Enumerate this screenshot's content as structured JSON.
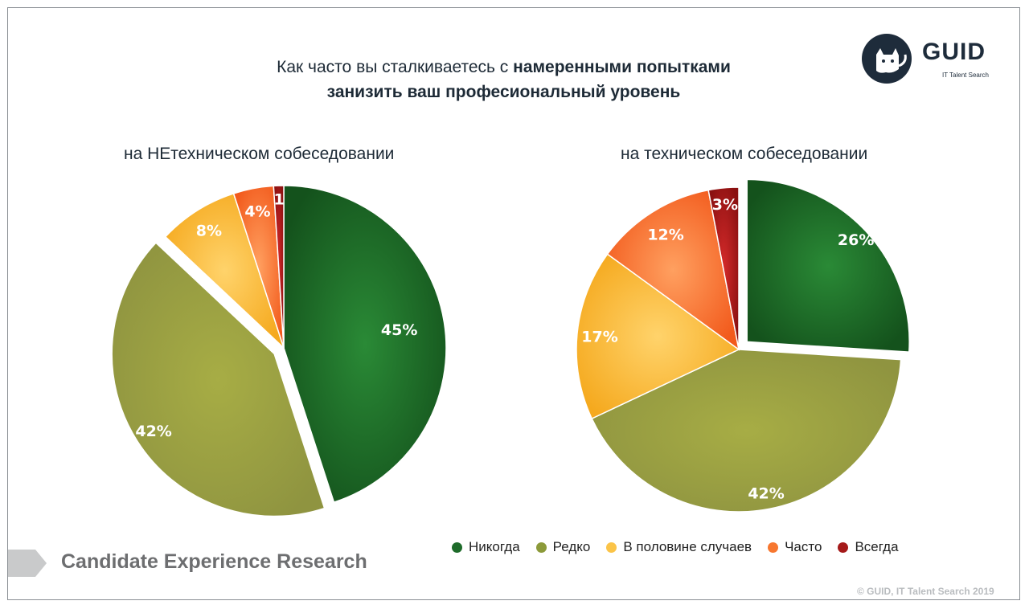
{
  "title": {
    "line1_normal": "Как часто вы сталкиваетесь с ",
    "line1_bold": "намеренными попытками",
    "line2_bold": "занизить ваш професиональный уровень"
  },
  "logo": {
    "text": "GUID",
    "subtitle": "IT Talent Search"
  },
  "legend": [
    {
      "label": "Никогда",
      "color": "#1e6b2a"
    },
    {
      "label": "Редко",
      "color": "#8c9a3a"
    },
    {
      "label": "В половине случаев",
      "color": "#fbc448"
    },
    {
      "label": "Часто",
      "color": "#f7772f"
    },
    {
      "label": "Всегда",
      "color": "#a51a1a"
    }
  ],
  "footer": {
    "research": "Candidate Experience Research",
    "copyright": "© GUID, IT Talent Search 2019"
  },
  "chart_data": [
    {
      "type": "pie",
      "title": "на НЕтехническом собеседовании",
      "categories": [
        "Никогда",
        "Редко",
        "В половине случаев",
        "Часто",
        "Всегда"
      ],
      "values": [
        45,
        42,
        8,
        4,
        1
      ],
      "labels": [
        "45%",
        "42%",
        "8%",
        "4%",
        "1"
      ],
      "colors": [
        "#1e6b2a",
        "#8c9a3a",
        "#fbc448",
        "#f7772f",
        "#a51a1a"
      ],
      "exploded": [
        false,
        true,
        false,
        false,
        false
      ]
    },
    {
      "type": "pie",
      "title": "на техническом собеседовании",
      "categories": [
        "Никогда",
        "Редко",
        "В половине случаев",
        "Часто",
        "Всегда"
      ],
      "values": [
        26,
        42,
        17,
        12,
        3
      ],
      "labels": [
        "26%",
        "42%",
        "17%",
        "12%",
        "3%"
      ],
      "colors": [
        "#1e6b2a",
        "#8c9a3a",
        "#fbc448",
        "#f7772f",
        "#a51a1a"
      ],
      "exploded": [
        true,
        false,
        false,
        false,
        false
      ]
    }
  ]
}
